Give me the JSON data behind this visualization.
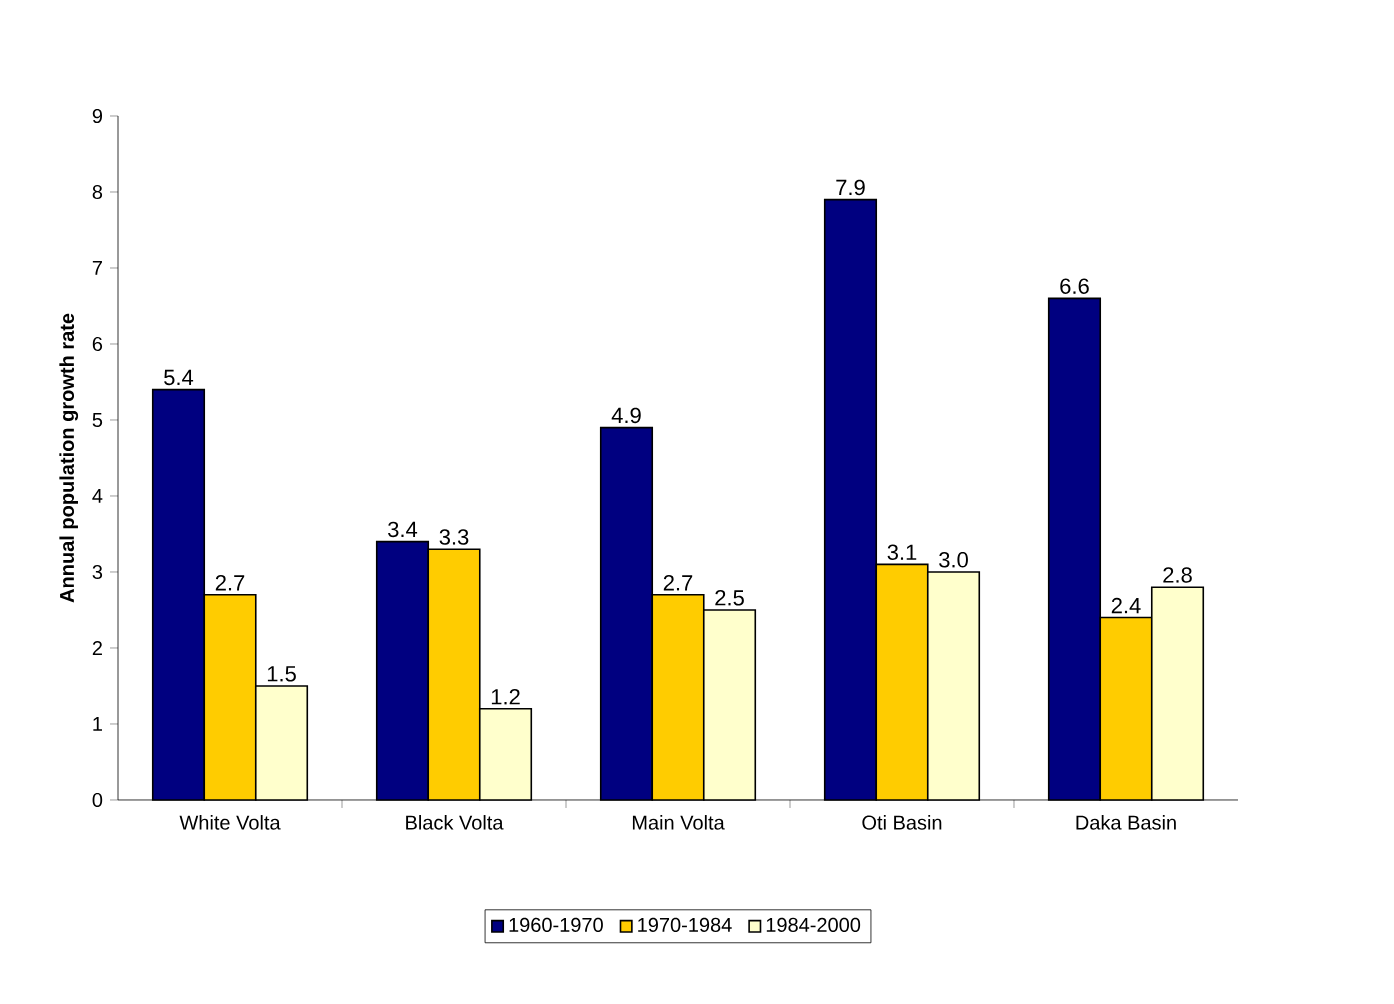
{
  "chart_data": {
    "type": "bar",
    "ylabel": "Annual population growth rate",
    "categories": [
      "White Volta",
      "Black Volta",
      "Main Volta",
      "Oti Basin",
      "Daka Basin"
    ],
    "series": [
      {
        "name": "1960-1970",
        "color": "#000080",
        "values": [
          5.4,
          3.4,
          4.9,
          7.9,
          6.6
        ],
        "value_labels": [
          "5.4",
          "3.4",
          "4.9",
          "7.9",
          "6.6"
        ]
      },
      {
        "name": "1970-1984",
        "color": "#ffcc00",
        "values": [
          2.7,
          3.3,
          2.7,
          3.1,
          2.4
        ],
        "value_labels": [
          "2.7",
          "3.3",
          "2.7",
          "3.1",
          "2.4"
        ]
      },
      {
        "name": "1984-2000",
        "color": "#ffffcc",
        "values": [
          1.5,
          1.2,
          2.5,
          3.0,
          2.8
        ],
        "value_labels": [
          "1.5",
          "1.2",
          "2.5",
          "3.0",
          "2.8"
        ]
      }
    ],
    "ylim": [
      0,
      9
    ],
    "yticks": [
      0,
      1,
      2,
      3,
      4,
      5,
      6,
      7,
      8,
      9
    ],
    "legend": "bottom"
  }
}
